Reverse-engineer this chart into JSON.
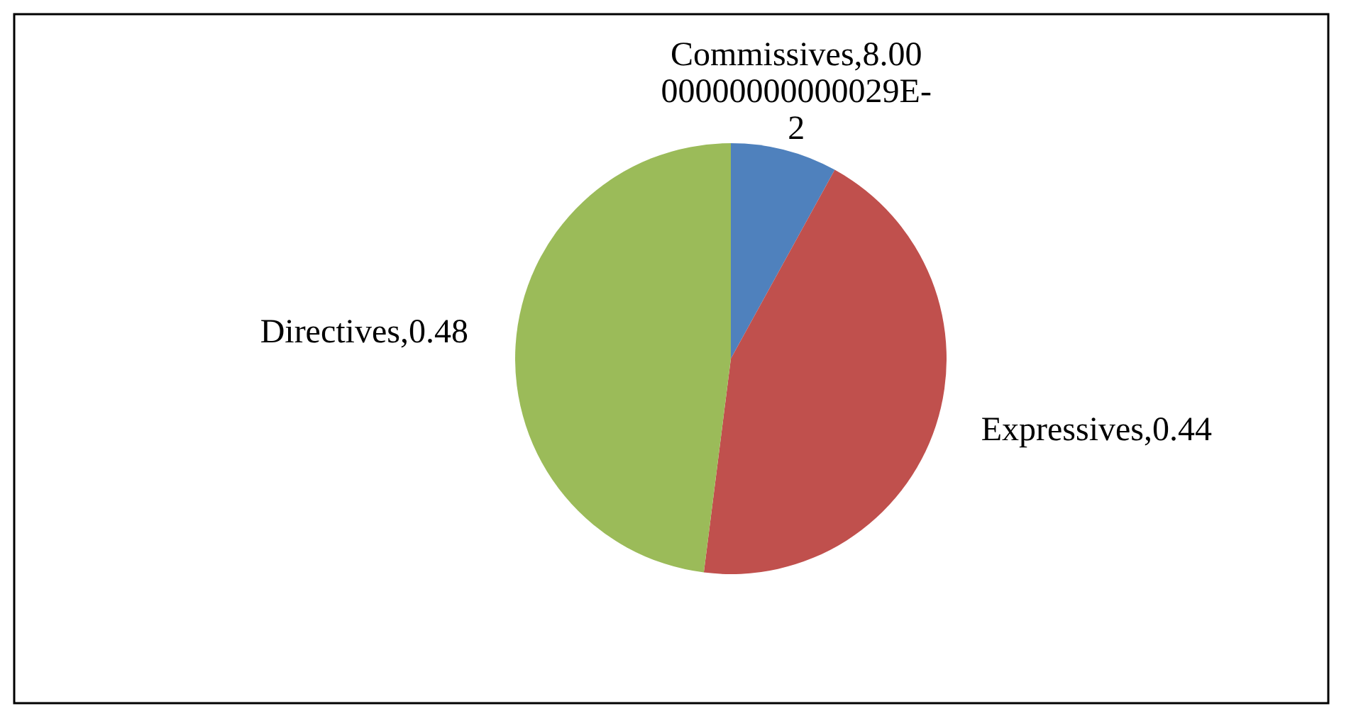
{
  "chart_data": {
    "type": "pie",
    "categories": [
      "Commissives",
      "Expressives",
      "Directives"
    ],
    "values": [
      0.08,
      0.44,
      0.48
    ],
    "colors": [
      "#4f81bd",
      "#c0504d",
      "#9bbb59"
    ],
    "value_labels": [
      "8.0000000000000029E-2",
      "0.44",
      "0.48"
    ]
  }
}
